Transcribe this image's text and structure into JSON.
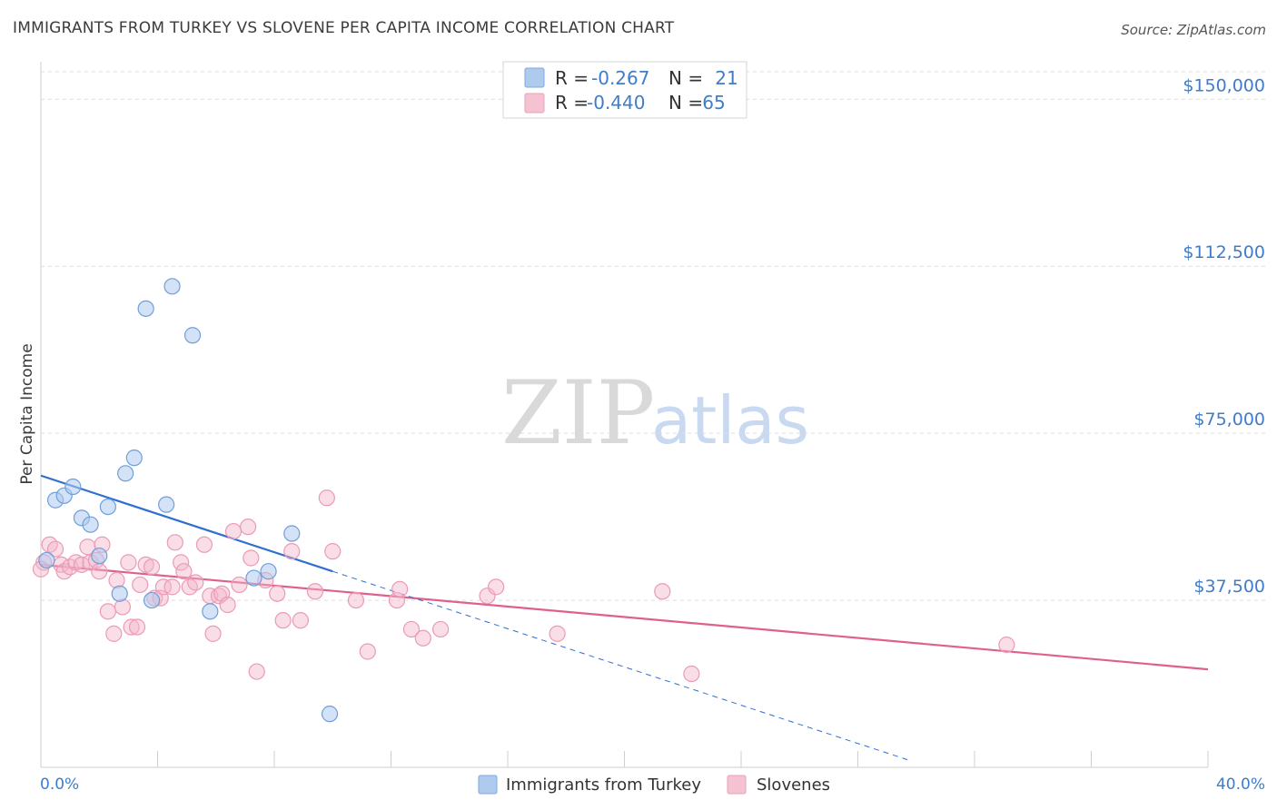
{
  "title": "IMMIGRANTS FROM TURKEY VS SLOVENE PER CAPITA INCOME CORRELATION CHART",
  "source": "Source: ZipAtlas.com",
  "watermark": {
    "zip": "ZIP",
    "atlas": "atlas"
  },
  "colors": {
    "blue": "#3f7cc9",
    "blue_fill": "#aecbee",
    "blue_line": "#2f6fce",
    "pink": "#e8799f",
    "pink_fill": "#f5b6c9",
    "pink_line": "#e0608c",
    "grid": "#dddddd",
    "axis_text": "#3f7cc9"
  },
  "legend": {
    "row1": {
      "r_label": "R =",
      "r_value": "-0.267",
      "n_label": "N =",
      "n_value": "21"
    },
    "row2": {
      "r_label": "R =",
      "r_value": "-0.440",
      "n_label": "N =",
      "n_value": "65"
    }
  },
  "chart_data": {
    "type": "scatter",
    "title": "IMMIGRANTS FROM TURKEY VS SLOVENE PER CAPITA INCOME CORRELATION CHART",
    "xlabel": "",
    "ylabel": "Per Capita Income",
    "xlim": [
      0,
      40
    ],
    "ylim": [
      0,
      157000
    ],
    "x_tick_labels": [
      "0.0%",
      "40.0%"
    ],
    "y_ticks": [
      37500,
      75000,
      112500,
      150000
    ],
    "y_tick_labels": [
      "$37,500",
      "$75,000",
      "$112,500",
      "$150,000"
    ],
    "grid": true,
    "legend_position": "top-center",
    "series": [
      {
        "name": "Immigrants from Turkey",
        "color": "#3f7cc9",
        "r": -0.267,
        "n": 21,
        "points": [
          [
            0.2,
            46500
          ],
          [
            0.5,
            60000
          ],
          [
            0.8,
            61000
          ],
          [
            1.1,
            63000
          ],
          [
            1.4,
            56000
          ],
          [
            1.7,
            54500
          ],
          [
            2.0,
            47500
          ],
          [
            2.3,
            58500
          ],
          [
            2.7,
            39000
          ],
          [
            2.9,
            66000
          ],
          [
            3.2,
            69500
          ],
          [
            3.6,
            103000
          ],
          [
            3.8,
            37500
          ],
          [
            4.3,
            59000
          ],
          [
            4.5,
            108000
          ],
          [
            5.2,
            97000
          ],
          [
            5.8,
            35000
          ],
          [
            7.3,
            42500
          ],
          [
            7.8,
            44000
          ],
          [
            8.6,
            52500
          ],
          [
            9.9,
            12000
          ]
        ],
        "trend": {
          "x": [
            0,
            10
          ],
          "y": [
            65500,
            44000
          ]
        },
        "trend_extension": {
          "x": [
            10,
            29.8
          ],
          "y": [
            44000,
            1500
          ]
        }
      },
      {
        "name": "Slovenes",
        "color": "#e8799f",
        "r": -0.44,
        "n": 65,
        "points": [
          [
            0.1,
            46000
          ],
          [
            0.3,
            50000
          ],
          [
            0.5,
            49000
          ],
          [
            0.7,
            45500
          ],
          [
            0.8,
            44000
          ],
          [
            1.0,
            45000
          ],
          [
            1.2,
            46000
          ],
          [
            1.4,
            45500
          ],
          [
            1.6,
            49500
          ],
          [
            1.7,
            46000
          ],
          [
            1.9,
            46500
          ],
          [
            2.0,
            44000
          ],
          [
            2.1,
            50000
          ],
          [
            2.3,
            35000
          ],
          [
            2.5,
            30000
          ],
          [
            2.6,
            42000
          ],
          [
            2.8,
            36000
          ],
          [
            3.0,
            46000
          ],
          [
            3.1,
            31500
          ],
          [
            3.3,
            31500
          ],
          [
            3.4,
            41000
          ],
          [
            3.6,
            45500
          ],
          [
            3.8,
            45000
          ],
          [
            3.9,
            38000
          ],
          [
            4.1,
            38000
          ],
          [
            4.2,
            40500
          ],
          [
            4.5,
            40500
          ],
          [
            4.6,
            50500
          ],
          [
            4.8,
            46000
          ],
          [
            4.9,
            44000
          ],
          [
            5.1,
            40500
          ],
          [
            5.3,
            41500
          ],
          [
            5.6,
            50000
          ],
          [
            5.8,
            38500
          ],
          [
            5.9,
            30000
          ],
          [
            6.1,
            38500
          ],
          [
            6.2,
            39000
          ],
          [
            6.4,
            36500
          ],
          [
            6.6,
            53000
          ],
          [
            6.8,
            41000
          ],
          [
            7.1,
            54000
          ],
          [
            7.2,
            47000
          ],
          [
            7.4,
            21500
          ],
          [
            7.7,
            42000
          ],
          [
            8.1,
            39000
          ],
          [
            8.3,
            33000
          ],
          [
            8.6,
            48500
          ],
          [
            8.9,
            33000
          ],
          [
            9.4,
            39500
          ],
          [
            9.8,
            60500
          ],
          [
            10.0,
            48500
          ],
          [
            10.8,
            37500
          ],
          [
            11.2,
            26000
          ],
          [
            12.2,
            37500
          ],
          [
            12.3,
            40000
          ],
          [
            12.7,
            31000
          ],
          [
            13.1,
            29000
          ],
          [
            13.7,
            31000
          ],
          [
            15.3,
            38500
          ],
          [
            15.6,
            40500
          ],
          [
            17.7,
            30000
          ],
          [
            21.3,
            39500
          ],
          [
            22.3,
            21000
          ],
          [
            33.1,
            27500
          ],
          [
            0.0,
            44500
          ]
        ],
        "trend": {
          "x": [
            0,
            40
          ],
          "y": [
            45500,
            22000
          ]
        }
      }
    ]
  },
  "bottom_legend": [
    {
      "label": "Immigrants from Turkey"
    },
    {
      "label": "Slovenes"
    }
  ]
}
